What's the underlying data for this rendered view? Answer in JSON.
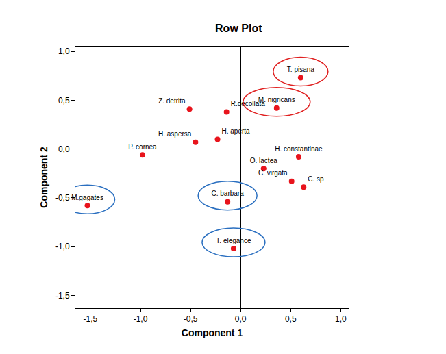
{
  "chart_data": {
    "type": "scatter",
    "title": "Row Plot",
    "x_label": "Component 1",
    "y_label": "Component 2",
    "color": "#e8141c",
    "grid": false,
    "xlim": [
      -1.65,
      1.08
    ],
    "ylim": [
      -1.63,
      1.05
    ],
    "xticks": [
      {
        "value": -1.5,
        "label": "-1,5"
      },
      {
        "value": -1.0,
        "label": "-1,0"
      },
      {
        "value": -0.5,
        "label": "-0,5"
      },
      {
        "value": 0,
        "label": "0,0"
      },
      {
        "value": 0.5,
        "label": "0,5"
      },
      {
        "value": 1.0,
        "label": "1,0"
      }
    ],
    "yticks": [
      {
        "value": -1.5,
        "label": "-1,5"
      },
      {
        "value": -1.0,
        "label": "-1,0"
      },
      {
        "value": -0.5,
        "label": "-0,5"
      },
      {
        "value": 0,
        "label": "0,0"
      },
      {
        "value": 0.5,
        "label": "0,5"
      },
      {
        "value": 1.0,
        "label": "1,0"
      }
    ],
    "series": [
      {
        "marker": "ringed",
        "color": "#e02020",
        "labels": [
          "T. pisana",
          "M. nigricans"
        ],
        "x": [
          0.6,
          0.36
        ],
        "values": [
          0.73,
          0.42
        ]
      },
      {
        "marker": "ringed",
        "color": "#2a6fc0",
        "labels": [
          "M.gagates",
          "C. barbara",
          "T. elegance"
        ],
        "x": [
          -1.53,
          -0.13,
          -0.07
        ],
        "values": [
          -0.58,
          -0.54,
          -1.02
        ]
      },
      {
        "marker": "circle",
        "labels": [
          "Z. detrita",
          "R.decollata",
          "H. aspersa",
          "H. aperta",
          "P. cornea",
          "H. constantinae",
          "O. lactea",
          "C. virgata",
          "C. sp"
        ],
        "x": [
          -0.51,
          -0.14,
          -0.45,
          -0.23,
          -0.98,
          0.58,
          0.23,
          0.51,
          0.63
        ],
        "values": [
          0.41,
          0.38,
          0.07,
          0.1,
          -0.06,
          -0.08,
          -0.2,
          -0.33,
          -0.39
        ]
      }
    ]
  }
}
